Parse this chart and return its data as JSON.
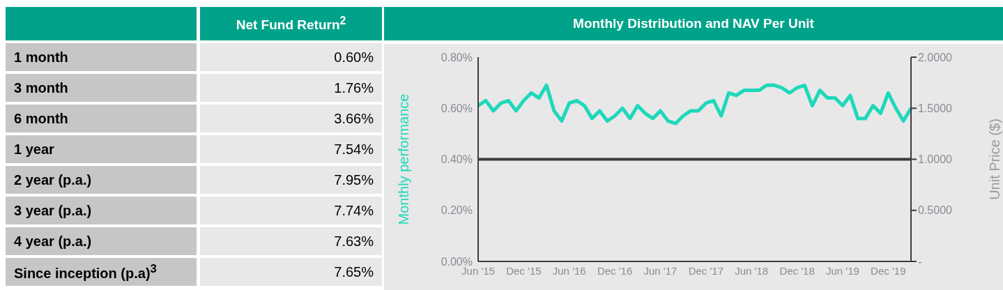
{
  "chart_data": [
    {
      "type": "other",
      "title": "Net Fund Return$^{2}$",
      "categories": [
        "1 month",
        "3 month",
        "6 month",
        "1 year",
        "2 year (p.a.)",
        "3 year (p.a.)",
        "4 year (p.a.)",
        "Since inception (p.a)$^{3}$"
      ],
      "value_labels": [
        "0.60%",
        "1.76%",
        "3.66%",
        "7.54%",
        "7.95%",
        "7.74%",
        "7.63%",
        "7.65%"
      ]
    },
    {
      "type": "line",
      "title": "Monthly Distribution and NAV Per Unit",
      "ylabel": "Monthly performance",
      "y2label": "Unit Price ($)",
      "marker": "none",
      "categories": [
        "Jun '15",
        null,
        null,
        null,
        null,
        null,
        "Dec '15",
        null,
        null,
        null,
        null,
        null,
        "Jun '16",
        null,
        null,
        null,
        null,
        null,
        "Dec '16",
        null,
        null,
        null,
        null,
        null,
        "Jun '17",
        null,
        null,
        null,
        null,
        null,
        "Dec '17",
        null,
        null,
        null,
        null,
        null,
        "Jun '18",
        null,
        null,
        null,
        null,
        null,
        "Dec '18",
        null,
        null,
        null,
        null,
        null,
        "Jun '19",
        null,
        null,
        null,
        null,
        null,
        "Dec '19",
        null,
        null,
        null
      ],
      "series": [
        {
          "color": "#1ed8bb",
          "values": [
            0.61,
            0.63,
            0.59,
            0.62,
            0.63,
            0.59,
            0.63,
            0.66,
            0.64,
            0.69,
            0.59,
            0.55,
            0.62,
            0.63,
            0.61,
            0.56,
            0.59,
            0.55,
            0.57,
            0.6,
            0.56,
            0.61,
            0.58,
            0.56,
            0.59,
            0.55,
            0.54,
            0.57,
            0.59,
            0.59,
            0.62,
            0.63,
            0.57,
            0.66,
            0.65,
            0.67,
            0.67,
            0.67,
            0.69,
            0.69,
            0.68,
            0.66,
            0.68,
            0.69,
            0.61,
            0.67,
            0.64,
            0.64,
            0.61,
            0.65,
            0.56,
            0.56,
            0.61,
            0.58,
            0.66,
            0.6,
            0.55,
            0.6
          ]
        },
        {
          "color": "#3d3d3d",
          "axis": "y2",
          "values": [
            1,
            1,
            1,
            1,
            1,
            1,
            1,
            1,
            1,
            1,
            1,
            1,
            1,
            1,
            1,
            1,
            1,
            1,
            1,
            1,
            1,
            1,
            1,
            1,
            1,
            1,
            1,
            1,
            1,
            1,
            1,
            1,
            1,
            1,
            1,
            1,
            1,
            1,
            1,
            1,
            1,
            1,
            1,
            1,
            1,
            1,
            1,
            1,
            1,
            1,
            1,
            1,
            1,
            1,
            1,
            1,
            1,
            1
          ]
        }
      ],
      "ylim": [
        0,
        0.8
      ],
      "yticks": [
        {
          "value": 0,
          "label": "0.00%"
        },
        {
          "value": 0.2,
          "label": "0.20%"
        },
        {
          "value": 0.4,
          "label": "0.40%"
        },
        {
          "value": 0.6,
          "label": "0.60%"
        },
        {
          "value": 0.8,
          "label": "0.80%"
        }
      ],
      "y2lim": [
        0,
        2
      ],
      "y2ticks": [
        {
          "value": 0,
          "label": "-"
        },
        {
          "value": 0.5,
          "label": "0.5000"
        },
        {
          "value": 1,
          "label": "1.0000"
        },
        {
          "value": 1.5,
          "label": "1.5000"
        },
        {
          "value": 2,
          "label": "2.0000"
        }
      ]
    }
  ]
}
